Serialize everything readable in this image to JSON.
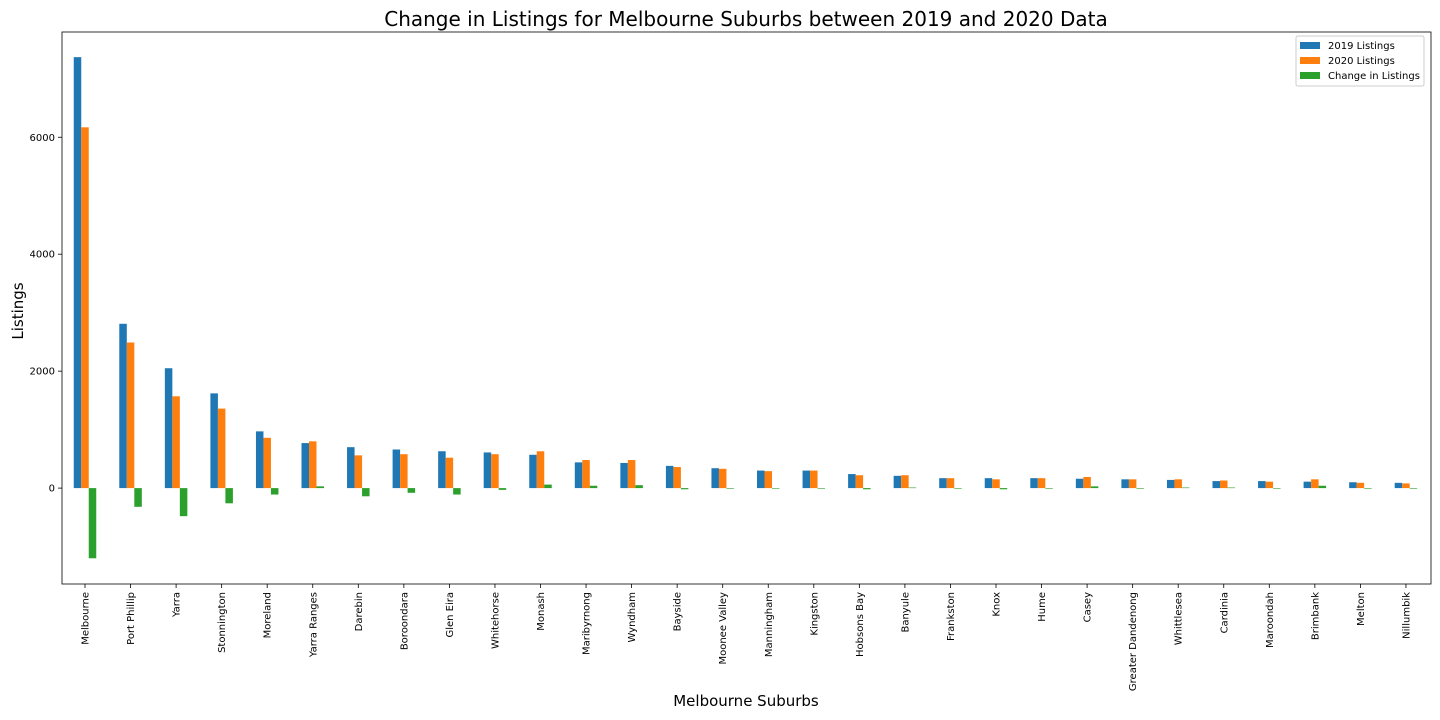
{
  "chart_data": {
    "type": "bar",
    "title": "Change in Listings for Melbourne Suburbs between 2019 and 2020 Data",
    "xlabel": "Melbourne Suburbs",
    "ylabel": "Listings",
    "ylim": [
      -1640,
      7800
    ],
    "yticks": [
      0,
      2000,
      4000,
      6000
    ],
    "grid": false,
    "legend_position": "top-right",
    "categories": [
      "Melbourne",
      "Port Phillip",
      "Yarra",
      "Stonnington",
      "Moreland",
      "Yarra Ranges",
      "Darebin",
      "Boroondara",
      "Glen Eira",
      "Whitehorse",
      "Monash",
      "Maribyrnong",
      "Wyndham",
      "Bayside",
      "Moonee Valley",
      "Manningham",
      "Kingston",
      "Hobsons Bay",
      "Banyule",
      "Frankston",
      "Knox",
      "Hume",
      "Casey",
      "Greater Dandenong",
      "Whittlesea",
      "Cardinia",
      "Maroondah",
      "Brimbank",
      "Melton",
      "Nillumbik"
    ],
    "series": [
      {
        "name": "2019 Listings",
        "color": "#1f77b4",
        "values": [
          7370,
          2810,
          2050,
          1620,
          970,
          770,
          700,
          660,
          630,
          610,
          570,
          440,
          430,
          380,
          340,
          300,
          300,
          240,
          210,
          170,
          170,
          170,
          160,
          150,
          140,
          120,
          120,
          110,
          100,
          90
        ]
      },
      {
        "name": "2020 Listings",
        "color": "#ff7f0e",
        "values": [
          6170,
          2490,
          1570,
          1360,
          860,
          800,
          560,
          580,
          520,
          580,
          630,
          480,
          480,
          360,
          330,
          290,
          300,
          220,
          220,
          170,
          150,
          170,
          190,
          150,
          150,
          130,
          110,
          150,
          90,
          80
        ]
      },
      {
        "name": "Change in Listings",
        "color": "#2ca02c",
        "values": [
          -1200,
          -320,
          -480,
          -260,
          -110,
          30,
          -140,
          -80,
          -110,
          -30,
          60,
          40,
          50,
          -20,
          -10,
          -10,
          0,
          -20,
          10,
          0,
          -20,
          0,
          30,
          0,
          10,
          10,
          -10,
          40,
          -10,
          -10
        ]
      }
    ]
  }
}
